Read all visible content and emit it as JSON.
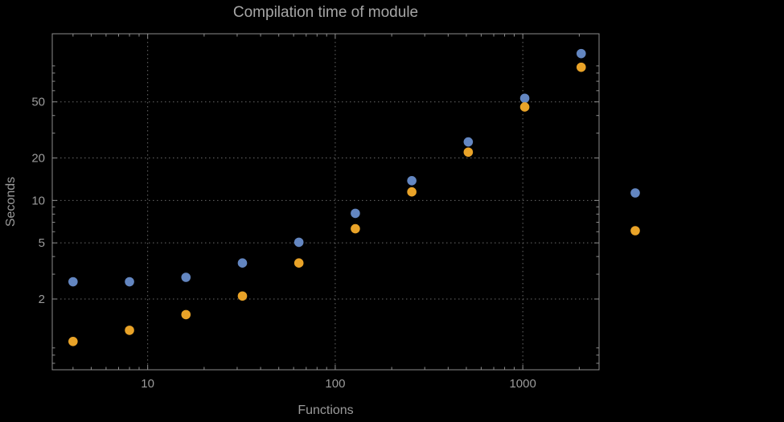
{
  "chart_data": {
    "type": "scatter",
    "title": "Compilation time of module",
    "xlabel": "Functions",
    "ylabel": "Seconds",
    "x_scale": "log",
    "y_scale": "log",
    "x_range": [
      3.1,
      2550
    ],
    "y_range": [
      0.63,
      152
    ],
    "x_ticks": [
      10,
      100,
      1000
    ],
    "y_ticks": [
      2,
      5,
      10,
      20,
      50
    ],
    "grid": "dotted",
    "legend_position": "right-of-frame",
    "x": [
      4,
      8,
      16,
      32,
      64,
      128,
      256,
      512,
      1024,
      2048
    ],
    "series": [
      {
        "color": "#6386c1",
        "values": [
          2.65,
          2.65,
          2.85,
          3.6,
          5.05,
          8.1,
          13.8,
          26,
          53,
          110
        ]
      },
      {
        "color": "#e9a328",
        "values": [
          1.0,
          1.2,
          1.55,
          2.1,
          3.6,
          6.3,
          11.5,
          22,
          46,
          88
        ]
      }
    ],
    "legend_markers": [
      {
        "color": "#6386c1"
      },
      {
        "color": "#e9a328"
      }
    ]
  },
  "style": {
    "background": "#000000",
    "frame_color": "#8d8d8d",
    "grid_color": "#696969",
    "text_color": "#9b9b9b",
    "title_color": "#a6a6a6"
  }
}
